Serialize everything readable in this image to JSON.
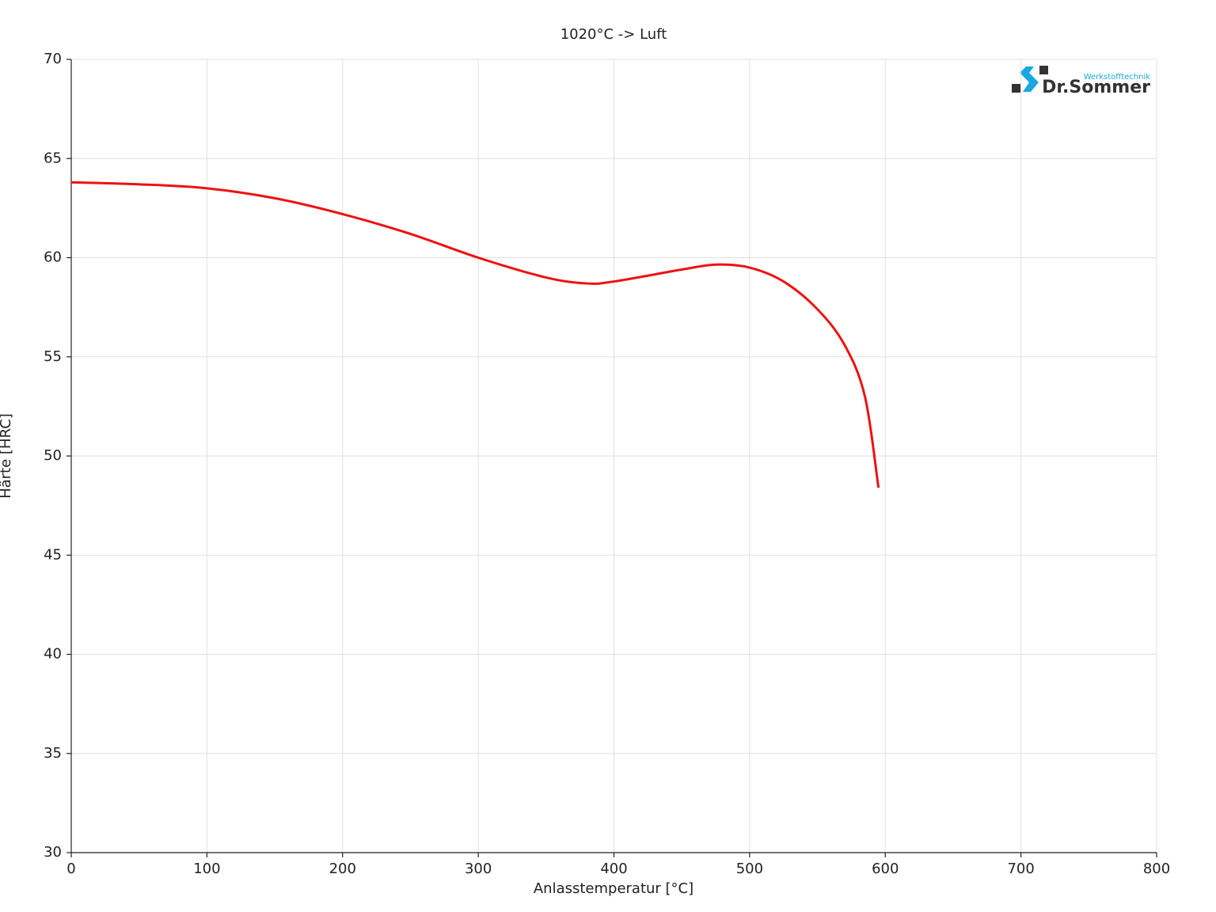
{
  "chart_data": {
    "type": "line",
    "title": "1020°C -> Luft",
    "x_label": "Anlasstemperatur [°C]",
    "y_label": "Härte [HRC]",
    "x": [
      0,
      50,
      100,
      150,
      200,
      250,
      300,
      350,
      380,
      400,
      450,
      475,
      500,
      525,
      550,
      570,
      585,
      595
    ],
    "series": [
      {
        "color": "#ee1111",
        "values": [
          63.8,
          63.7,
          63.5,
          63.0,
          62.2,
          61.2,
          60.0,
          59.0,
          58.7,
          58.8,
          59.4,
          59.65,
          59.5,
          58.8,
          57.4,
          55.6,
          53.0,
          48.4
        ]
      }
    ],
    "xlim": [
      0,
      800
    ],
    "xticks": [
      0,
      100,
      200,
      300,
      400,
      500,
      600,
      700,
      800
    ],
    "ylim": [
      30,
      70
    ],
    "yticks": [
      30,
      35,
      40,
      45,
      50,
      55,
      60,
      65,
      70
    ],
    "grid": true
  },
  "logo": {
    "brand": "Dr.Sommer",
    "tagline": "Werkstofftechnik"
  }
}
